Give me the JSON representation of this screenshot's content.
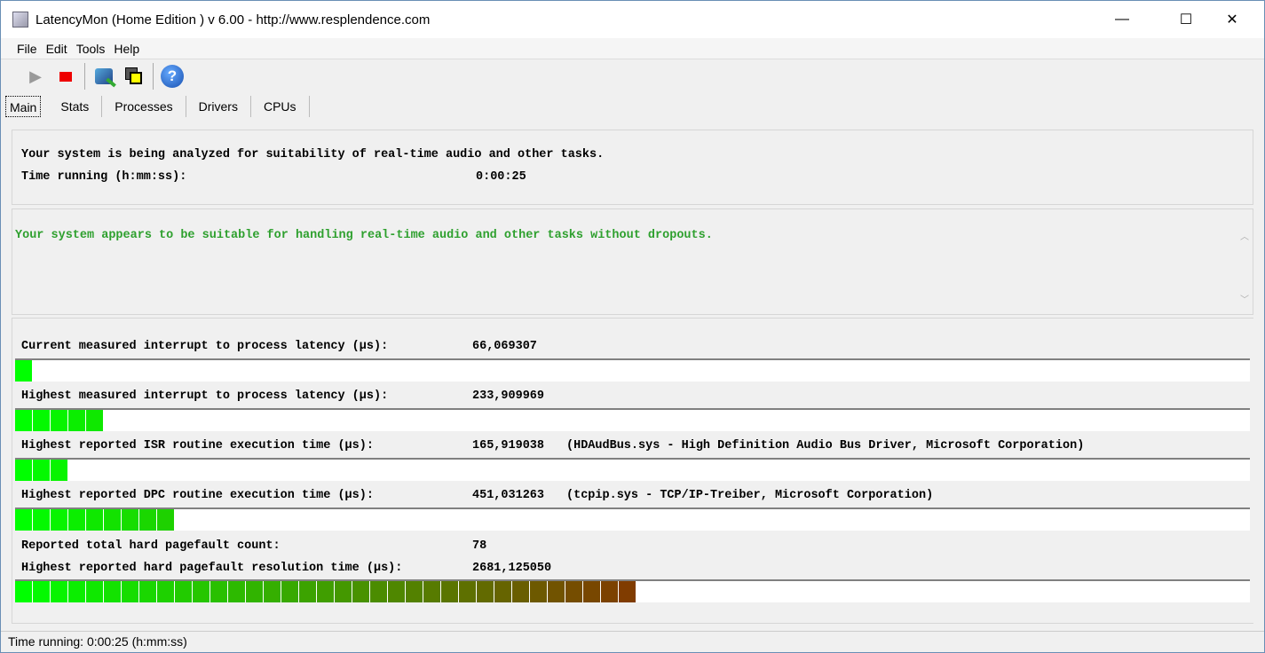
{
  "window": {
    "title": "LatencyMon  (Home Edition )  v 6.00 - http://www.resplendence.com",
    "minimize": "—",
    "maximize": "☐",
    "close": "✕"
  },
  "menu": [
    "File",
    "Edit",
    "Tools",
    "Help"
  ],
  "toolbar": {
    "icons": [
      "play-icon",
      "stop-icon",
      "monitor-icon",
      "windows-icon",
      "help-icon"
    ],
    "help_glyph": "?"
  },
  "tabs": [
    "Main",
    "Stats",
    "Processes",
    "Drivers",
    "CPUs"
  ],
  "analysis": {
    "line1": "Your system is being analyzed for suitability of real-time audio and other tasks.",
    "time_label": "Time running (h:mm:ss):",
    "time_value": "0:00:25"
  },
  "verdict": {
    "text": "Your system appears to be suitable for handling real-time audio and other tasks without dropouts.",
    "color": "#2ea02e"
  },
  "metrics": [
    {
      "label": "Current measured interrupt to process latency (µs):",
      "value": "66,069307",
      "detail": "",
      "fill": 0.013
    },
    {
      "label": "Highest measured interrupt to process latency (µs):",
      "value": "233,909969",
      "detail": "",
      "fill": 0.07
    },
    {
      "label": "Highest reported ISR routine execution time (µs):",
      "value": "165,919038",
      "detail": "(HDAudBus.sys - High Definition Audio Bus Driver, Microsoft Corporation)",
      "fill": 0.042
    },
    {
      "label": "Highest reported DPC routine execution time (µs):",
      "value": "451,031263",
      "detail": "(tcpip.sys - TCP/IP-Treiber, Microsoft Corporation)",
      "fill": 0.128
    },
    {
      "label": "Reported total hard pagefault count:",
      "value": "78"
    },
    {
      "label": "Highest reported hard pagefault resolution time (µs):",
      "value": "2681,125050",
      "detail": "",
      "fill": 0.5
    }
  ],
  "bar_colors": {
    "start": "#00ff00",
    "end": "#803c00"
  },
  "status": "Time running: 0:00:25  (h:mm:ss)"
}
